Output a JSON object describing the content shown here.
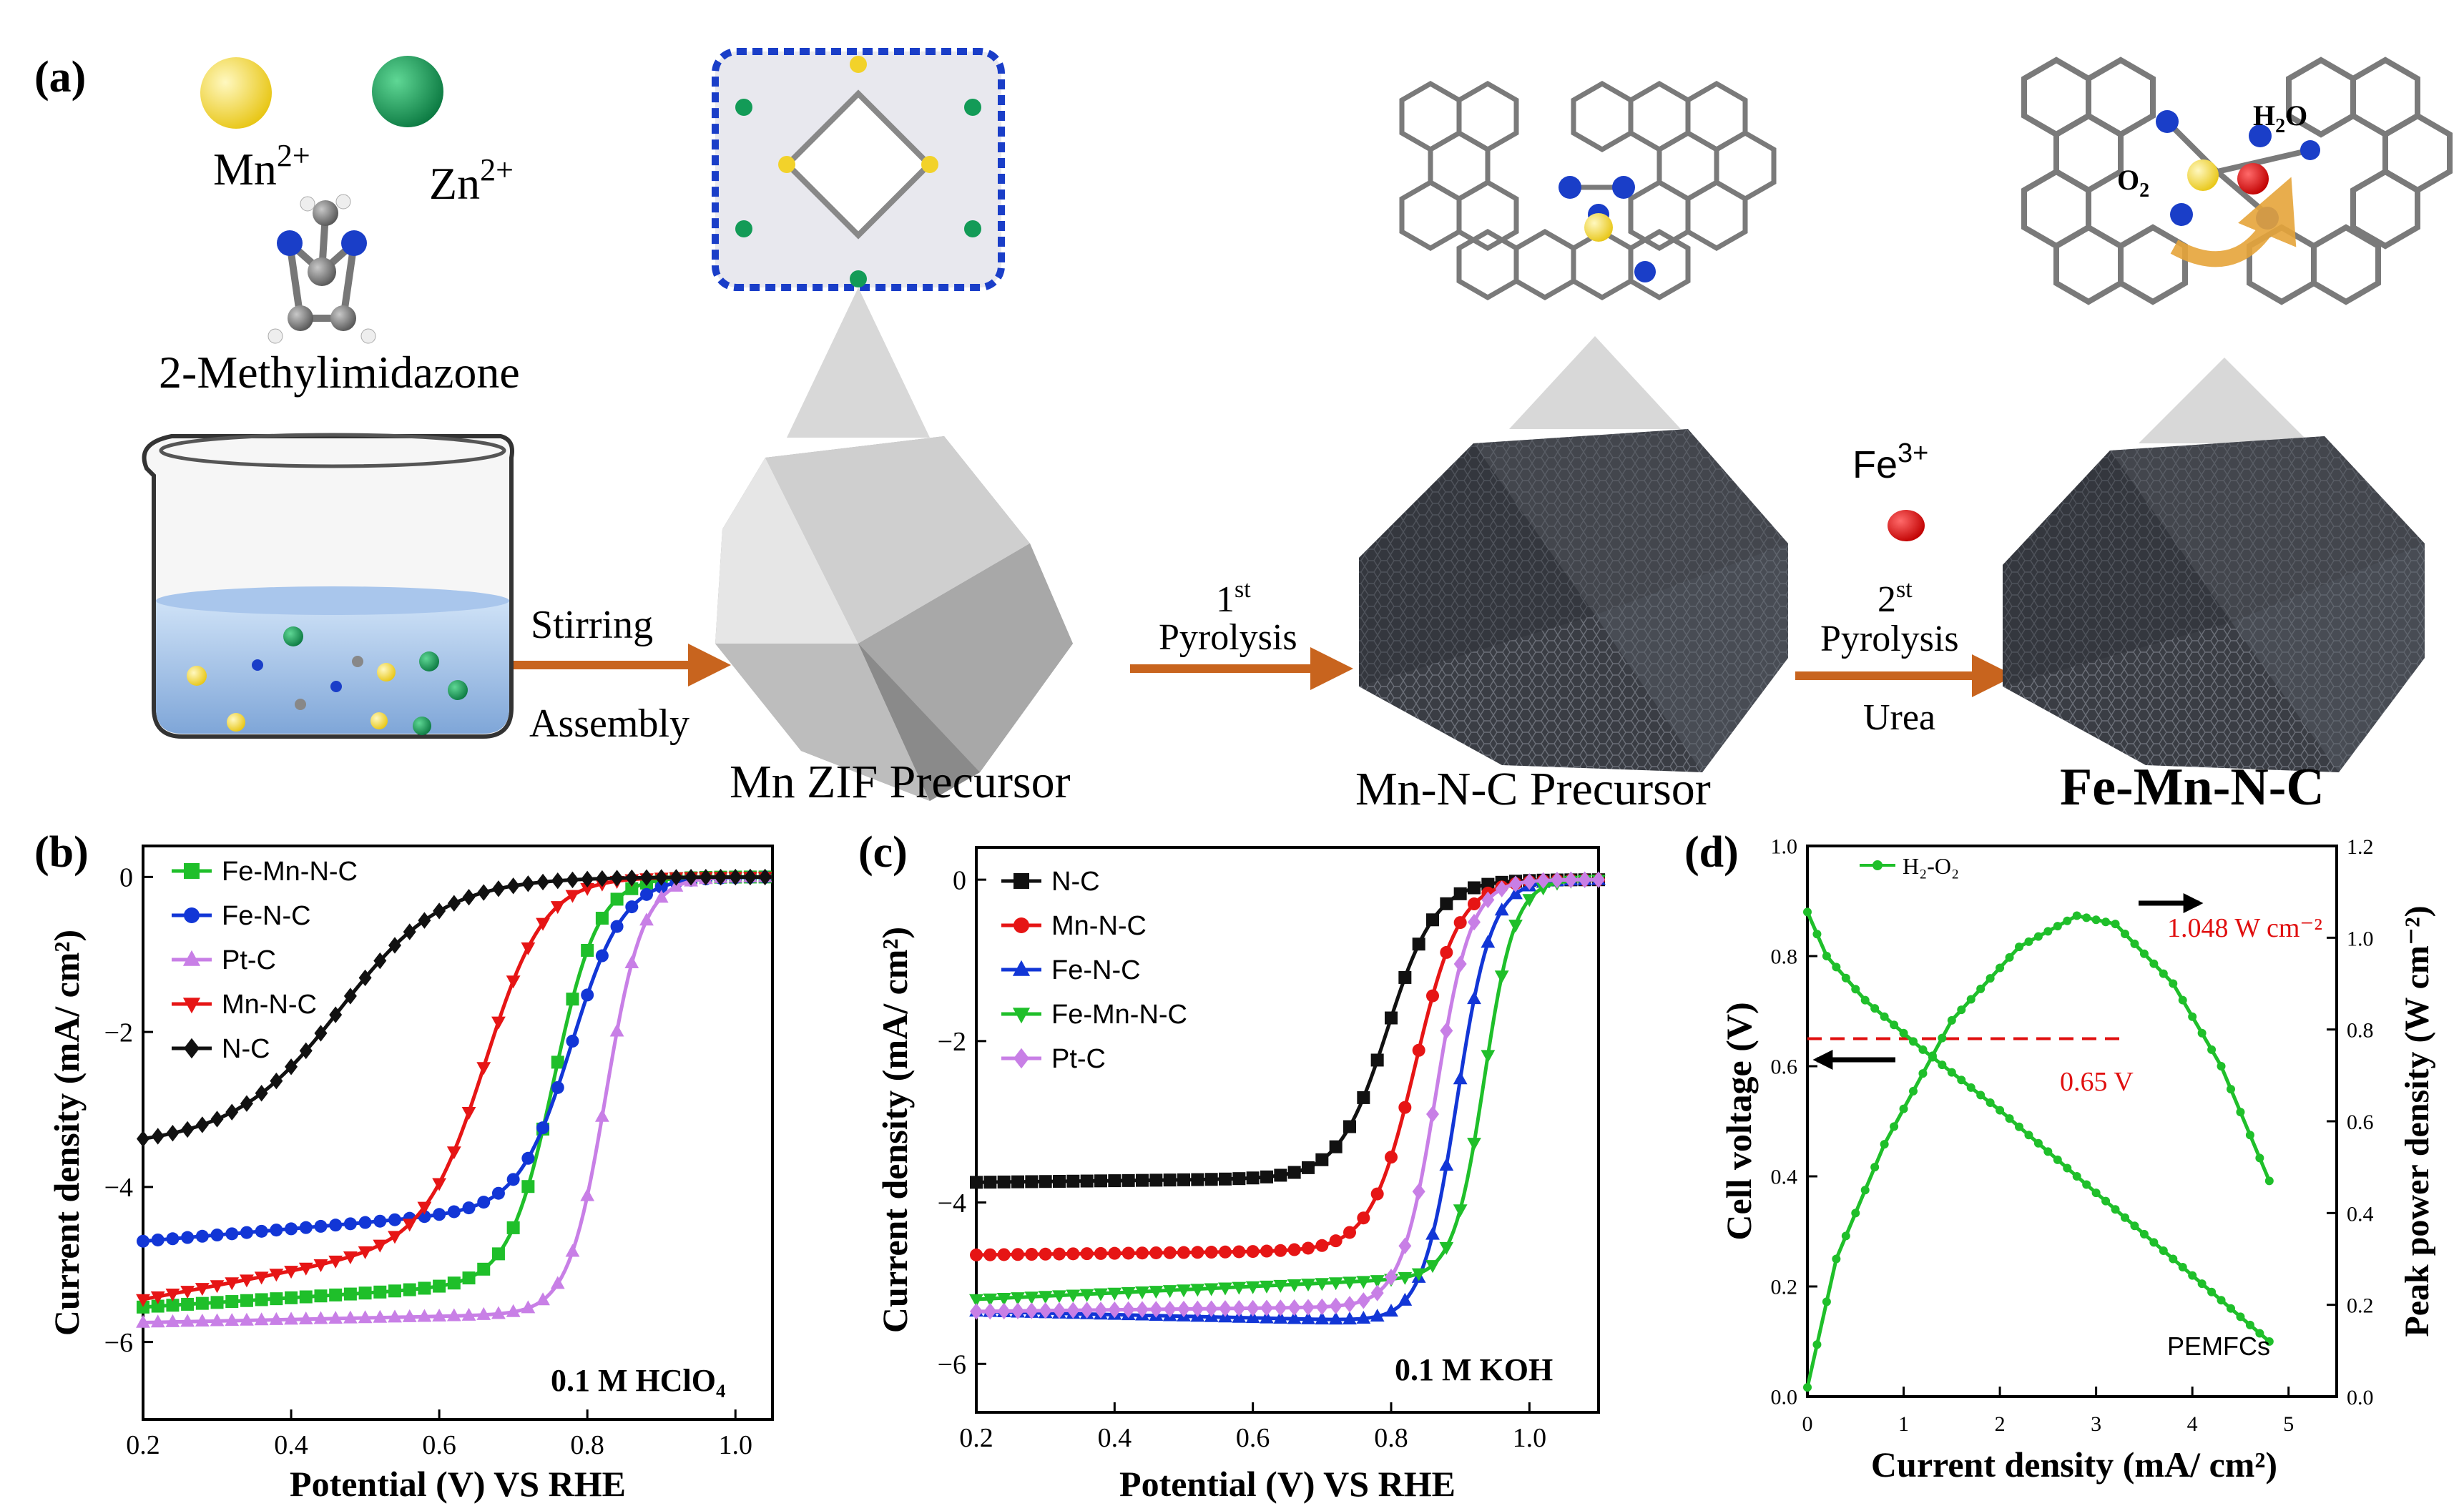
{
  "scheme": {
    "panel_label": "(a)",
    "ion_mn": "Mn",
    "ion_mn_sup": "2+",
    "ion_zn": "Zn",
    "ion_zn_sup": "2+",
    "ligand": "2-Methylimidazone",
    "step1_top": "Stirring",
    "step1_bottom": "Assembly",
    "stage1": "Mn ZIF  Precursor",
    "step2_sup": "st",
    "step2_num": "1",
    "step2_label": "Pyrolysis",
    "stage2": "Mn-N-C  Precursor",
    "fe_ion": "Fe",
    "fe_ion_sup": "3+",
    "step3_num": "2",
    "step3_sup": "st",
    "step3_label": "Pyrolysis",
    "step3_bottom": "Urea",
    "stage3": "Fe-Mn-N-C",
    "inset_o2": "O",
    "inset_o2_sub": "2",
    "inset_h2o": "H",
    "inset_h2o_sub": "2",
    "inset_h2o_end": "O",
    "colors": {
      "arrow": "#c8641e",
      "mn": "#f2d22a",
      "zn": "#139b57",
      "fe": "#e01010",
      "n": "#1a3ec8",
      "c": "#7a7a7a"
    }
  },
  "chart_data": [
    {
      "type": "line",
      "panel_label": "(b)",
      "xlabel": "Potential (V) VS RHE",
      "ylabel": "Current density (mA/ cm²)",
      "xlim": [
        0.2,
        1.05
      ],
      "ylim": [
        -7,
        0.4
      ],
      "xticks": [
        0.2,
        0.4,
        0.6,
        0.8,
        1.0
      ],
      "xtick_labels": [
        "0.2",
        "0.4",
        "0.6",
        "0.8",
        "1.0"
      ],
      "yticks": [
        -6,
        -4,
        -2,
        0
      ],
      "ytick_labels": [
        "−6",
        "−4",
        "−2",
        "0"
      ],
      "annotation": "0.1 M HClO₄",
      "legend_position": "top-left",
      "series": [
        {
          "name": "Fe-Mn-N-C",
          "color": "#1fbf2a",
          "marker": "square",
          "e0": 0.755,
          "w": 0.03,
          "jL": -5.55,
          "jLs": 0.6
        },
        {
          "name": "Fe-N-C",
          "color": "#1236d6",
          "marker": "circle",
          "e0": 0.78,
          "w": 0.035,
          "jL": -4.7,
          "jLs": 0.8
        },
        {
          "name": "Pt-C",
          "color": "#c87fe6",
          "marker": "triangle-up",
          "e0": 0.825,
          "w": 0.025,
          "jL": -5.75,
          "jLs": 0.2
        },
        {
          "name": "Mn-N-C",
          "color": "#e61515",
          "marker": "triangle-down",
          "e0": 0.665,
          "w": 0.04,
          "jL": -5.45,
          "jLs": 1.8
        },
        {
          "name": "N-C",
          "color": "#111111",
          "marker": "diamond",
          "e0": 0.47,
          "w": 0.07,
          "jL": -3.45,
          "jLs": 0.5
        }
      ]
    },
    {
      "type": "line",
      "panel_label": "(c)",
      "xlabel": "Potential (V) VS RHE",
      "ylabel": "Current density (mA/ cm²)",
      "xlim": [
        0.2,
        1.1
      ],
      "ylim": [
        -6.6,
        0.4
      ],
      "xticks": [
        0.2,
        0.4,
        0.6,
        0.8,
        1.0
      ],
      "xtick_labels": [
        "0.2",
        "0.4",
        "0.6",
        "0.8",
        "1.0"
      ],
      "yticks": [
        -6,
        -4,
        -2,
        0
      ],
      "ytick_labels": [
        "−6",
        "−4",
        "−2",
        "0"
      ],
      "annotation": "0.1 M KOH",
      "legend_position": "top-left",
      "series": [
        {
          "name": "N-C",
          "color": "#111111",
          "marker": "square",
          "e0": 0.795,
          "w": 0.035,
          "jL": -3.75,
          "jLs": 0.1
        },
        {
          "name": "Mn-N-C",
          "color": "#e61515",
          "marker": "circle",
          "e0": 0.835,
          "w": 0.032,
          "jL": -4.65,
          "jLs": 0.1
        },
        {
          "name": "Fe-N-C",
          "color": "#1236d6",
          "marker": "triangle-up",
          "e0": 0.895,
          "w": 0.025,
          "jL": -5.35,
          "jLs": -0.2
        },
        {
          "name": "Fe-Mn-N-C",
          "color": "#1fbf2a",
          "marker": "triangle-down",
          "e0": 0.935,
          "w": 0.022,
          "jL": -5.2,
          "jLs": 0.4
        },
        {
          "name": "Pt-C",
          "color": "#c87fe6",
          "marker": "diamond",
          "e0": 0.865,
          "w": 0.025,
          "jL": -5.35,
          "jLs": 0.1
        }
      ]
    },
    {
      "type": "line",
      "panel_label": "(d)",
      "xlabel": "Current density (mA/ cm²)",
      "ylabel": "Cell voltage (V)",
      "ylabel_right": "Peak power density (W cm⁻²)",
      "xlim": [
        0,
        5.5
      ],
      "ylim": [
        0,
        1.0
      ],
      "ylim_right": [
        0,
        1.2
      ],
      "xticks": [
        0,
        1,
        2,
        3,
        4,
        5
      ],
      "xtick_labels": [
        "0",
        "1",
        "2",
        "3",
        "4",
        "5"
      ],
      "yticks": [
        0.0,
        0.2,
        0.4,
        0.6,
        0.8,
        1.0
      ],
      "ytick_labels": [
        "0.0",
        "0.2",
        "0.4",
        "0.6",
        "0.8",
        "1.0"
      ],
      "yticks_right": [
        0.0,
        0.2,
        0.4,
        0.6,
        0.8,
        1.0,
        1.2
      ],
      "ytick_labels_right": [
        "0.0",
        "0.2",
        "0.4",
        "0.6",
        "0.8",
        "1.0",
        "1.2"
      ],
      "legend": "H₂-O₂",
      "legend_position": "top-left",
      "annotation_peak": "1.048 W cm⁻²",
      "annotation_voltage": "0.65 V",
      "reference_voltage": 0.65,
      "device_label": "PEMFCs",
      "color": "#1fbf2a",
      "polarization": {
        "x": [
          0,
          0.2,
          0.6,
          1.2,
          2.0,
          3.0,
          4.0,
          4.8
        ],
        "y": [
          0.88,
          0.8,
          0.72,
          0.63,
          0.52,
          0.37,
          0.22,
          0.1
        ]
      },
      "power": {
        "x": [
          0,
          0.3,
          0.8,
          1.5,
          2.2,
          2.8,
          3.2,
          3.8,
          4.3,
          4.8
        ],
        "y": [
          0.02,
          0.3,
          0.55,
          0.82,
          0.98,
          1.048,
          1.03,
          0.9,
          0.72,
          0.47
        ]
      }
    }
  ]
}
